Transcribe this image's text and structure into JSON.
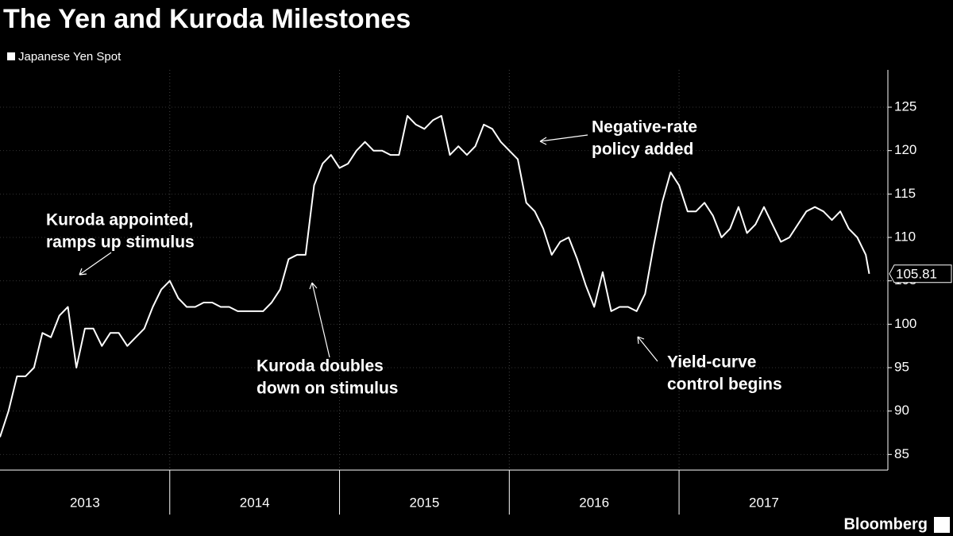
{
  "chart_data": {
    "type": "line",
    "title": "The Yen and Kuroda Milestones",
    "source": "Bloomberg",
    "x": [
      2013.0,
      2013.05,
      2013.1,
      2013.15,
      2013.2,
      2013.25,
      2013.3,
      2013.35,
      2013.4,
      2013.45,
      2013.5,
      2013.55,
      2013.6,
      2013.65,
      2013.7,
      2013.75,
      2013.8,
      2013.85,
      2013.9,
      2013.95,
      2014.0,
      2014.05,
      2014.1,
      2014.15,
      2014.2,
      2014.25,
      2014.3,
      2014.35,
      2014.4,
      2014.45,
      2014.5,
      2014.55,
      2014.6,
      2014.65,
      2014.7,
      2014.75,
      2014.8,
      2014.85,
      2014.9,
      2014.95,
      2015.0,
      2015.05,
      2015.1,
      2015.15,
      2015.2,
      2015.25,
      2015.3,
      2015.35,
      2015.4,
      2015.45,
      2015.5,
      2015.55,
      2015.6,
      2015.65,
      2015.7,
      2015.75,
      2015.8,
      2015.85,
      2015.9,
      2015.95,
      2016.0,
      2016.05,
      2016.1,
      2016.15,
      2016.2,
      2016.25,
      2016.3,
      2016.35,
      2016.4,
      2016.45,
      2016.5,
      2016.55,
      2016.6,
      2016.65,
      2016.7,
      2016.75,
      2016.8,
      2016.85,
      2016.9,
      2016.95,
      2017.0,
      2017.05,
      2017.1,
      2017.15,
      2017.2,
      2017.25,
      2017.3,
      2017.35,
      2017.4,
      2017.45,
      2017.5,
      2017.55,
      2017.6,
      2017.65,
      2017.7,
      2017.75,
      2017.8,
      2017.85,
      2017.9,
      2017.95,
      2018.0,
      2018.05,
      2018.1,
      2018.12
    ],
    "series": [
      {
        "name": "Japanese Yen Spot",
        "color": "#ffffff",
        "values": [
          87,
          90,
          94,
          94,
          95,
          99,
          98.5,
          101,
          102,
          95,
          99.5,
          99.5,
          97.5,
          99,
          99,
          97.5,
          98.5,
          99.5,
          102,
          104,
          105,
          103,
          102,
          102,
          102.5,
          102.5,
          102,
          102,
          101.5,
          101.5,
          101.5,
          101.5,
          102.5,
          104,
          107.5,
          108,
          108,
          116,
          118.5,
          119.5,
          118,
          118.5,
          120,
          121,
          120,
          120,
          119.5,
          119.5,
          124,
          123,
          122.5,
          123.5,
          124,
          119.5,
          120.5,
          119.5,
          120.5,
          123,
          122.5,
          121,
          120,
          119,
          114,
          113,
          111,
          108,
          109.5,
          110,
          107.5,
          104.5,
          102,
          106,
          101.5,
          102,
          102,
          101.5,
          103.5,
          109,
          114,
          117.5,
          116,
          113,
          113,
          114,
          112.5,
          110,
          111,
          113.5,
          110.5,
          111.5,
          113.5,
          111.5,
          109.5,
          110,
          111.5,
          113,
          113.5,
          113,
          112,
          113,
          111,
          110,
          108,
          105.81
        ]
      }
    ],
    "xlim": [
      2013,
      2018.23
    ],
    "xticks": [
      {
        "value": 2013.5,
        "label": "2013"
      },
      {
        "value": 2014.5,
        "label": "2014"
      },
      {
        "value": 2015.5,
        "label": "2015"
      },
      {
        "value": 2016.5,
        "label": "2016"
      },
      {
        "value": 2017.5,
        "label": "2017"
      }
    ],
    "ylim": [
      83.2,
      129.3
    ],
    "yticks": [
      85,
      90,
      95,
      100,
      105,
      110,
      115,
      120,
      125
    ],
    "annotations": [
      {
        "text": [
          "Kuroda appointed,",
          "ramps up stimulus"
        ]
      },
      {
        "text": [
          "Kuroda doubles",
          "down on stimulus"
        ]
      },
      {
        "text": [
          "Negative-rate",
          "policy added"
        ]
      },
      {
        "text": [
          "Yield-curve",
          "control begins"
        ]
      }
    ]
  }
}
